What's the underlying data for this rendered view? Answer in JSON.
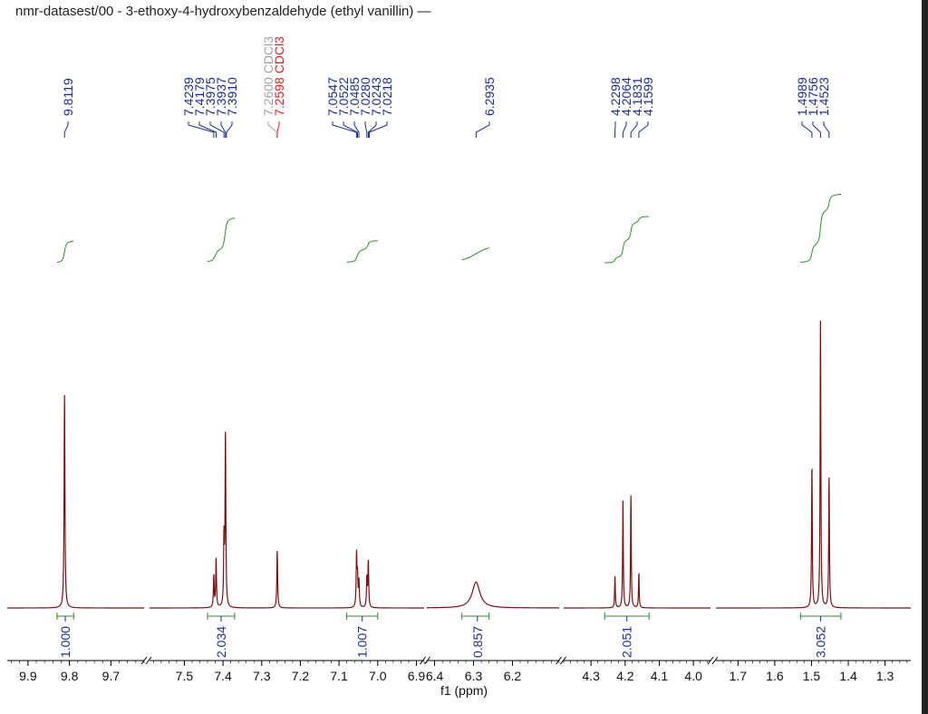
{
  "chart_data": {
    "type": "line",
    "title": "nmr-datasest/00 - 3-ethoxy-4-hydroxybenzaldehyde (ethyl vanillin) —",
    "xlabel": "f1 (ppm)",
    "x_axis_reversed": true,
    "axis_breaks": true,
    "colors": {
      "spectrum": "#7a1010",
      "integral": "#2e8b2e",
      "peak_label": "#1a2d8c",
      "solvent_ref": "#a0a0a0",
      "solvent_active": "#e02020",
      "axis": "#000000"
    },
    "segments": [
      {
        "range": [
          9.95,
          9.62
        ],
        "ticks": [
          "9.9",
          "9.8",
          "9.7"
        ],
        "tick_values": [
          9.9,
          9.8,
          9.7
        ]
      },
      {
        "range": [
          7.59,
          6.88
        ],
        "ticks": [
          "7.5",
          "7.4",
          "7.3",
          "7.2",
          "7.1",
          "7.0",
          "6.9"
        ],
        "tick_values": [
          7.5,
          7.4,
          7.3,
          7.2,
          7.1,
          7.0,
          6.9
        ]
      },
      {
        "range": [
          6.42,
          6.08
        ],
        "ticks": [
          "6.4",
          "6.3",
          "6.2"
        ],
        "tick_values": [
          6.4,
          6.3,
          6.2
        ]
      },
      {
        "range": [
          4.38,
          3.95
        ],
        "ticks": [
          "4.3",
          "4.2",
          "4.1",
          "4.0"
        ],
        "tick_values": [
          4.3,
          4.2,
          4.1,
          4.0
        ]
      },
      {
        "range": [
          1.76,
          1.23
        ],
        "ticks": [
          "1.7",
          "1.6",
          "1.5",
          "1.4",
          "1.3"
        ],
        "tick_values": [
          1.7,
          1.6,
          1.5,
          1.4,
          1.3
        ]
      }
    ],
    "peaks": [
      {
        "shift": 9.8119,
        "height": 0.74,
        "width": 0.0012
      },
      {
        "shift": 7.4239,
        "height": 0.11,
        "width": 0.0012
      },
      {
        "shift": 7.4179,
        "height": 0.17,
        "width": 0.0012
      },
      {
        "shift": 7.3975,
        "height": 0.23,
        "width": 0.0012
      },
      {
        "shift": 7.3937,
        "height": 0.6,
        "width": 0.0012
      },
      {
        "shift": 7.2598,
        "height": 0.2,
        "width": 0.0012
      },
      {
        "shift": 7.0547,
        "height": 0.18,
        "width": 0.0012
      },
      {
        "shift": 7.0522,
        "height": 0.1,
        "width": 0.0012
      },
      {
        "shift": 7.0485,
        "height": 0.09,
        "width": 0.0012
      },
      {
        "shift": 7.028,
        "height": 0.1,
        "width": 0.0012
      },
      {
        "shift": 7.0243,
        "height": 0.16,
        "width": 0.0012
      },
      {
        "shift": 6.2935,
        "height": 0.09,
        "width": 0.012
      },
      {
        "shift": 4.2298,
        "height": 0.11,
        "width": 0.0012
      },
      {
        "shift": 4.2064,
        "height": 0.38,
        "width": 0.0012
      },
      {
        "shift": 4.1831,
        "height": 0.39,
        "width": 0.0012
      },
      {
        "shift": 4.1599,
        "height": 0.12,
        "width": 0.0012
      },
      {
        "shift": 1.4989,
        "height": 0.49,
        "width": 0.0012
      },
      {
        "shift": 1.4756,
        "height": 1.0,
        "width": 0.0012
      },
      {
        "shift": 1.4523,
        "height": 0.45,
        "width": 0.0012
      }
    ],
    "peak_labels": [
      {
        "group": [
          9.8119
        ],
        "labels": [
          "9.8119"
        ],
        "color": "blue"
      },
      {
        "group": [
          7.4239,
          7.4179,
          7.3975,
          7.3937,
          7.391
        ],
        "labels": [
          "7.4239",
          "7.4179",
          "7.3975",
          "7.3937",
          "7.3910"
        ],
        "color": "blue"
      },
      {
        "group": [
          7.26,
          7.2598
        ],
        "labels": [
          "7.2600 CDCl3",
          "7.2598 CDCl3"
        ],
        "colors": [
          "gray",
          "red"
        ]
      },
      {
        "group": [
          7.0547,
          7.0522,
          7.0485,
          7.028,
          7.0243,
          7.0218
        ],
        "labels": [
          "7.0547",
          "7.0522",
          "7.0485",
          "7.0280",
          "7.0243",
          "7.0218"
        ],
        "color": "blue"
      },
      {
        "group": [
          6.2935
        ],
        "labels": [
          "6.2935"
        ],
        "color": "blue"
      },
      {
        "group": [
          4.2298,
          4.2064,
          4.1831,
          4.1599
        ],
        "labels": [
          "4.2298",
          "4.2064",
          "4.1831",
          "4.1599"
        ],
        "color": "blue"
      },
      {
        "group": [
          1.4989,
          1.4756,
          1.4523
        ],
        "labels": [
          "1.4989",
          "1.4756",
          "1.4523"
        ],
        "color": "blue"
      }
    ],
    "integrals": [
      {
        "from": 9.83,
        "to": 9.79,
        "value": "1.000",
        "label_at": 9.81
      },
      {
        "from": 7.44,
        "to": 7.37,
        "value": "2.034",
        "label_at": 7.405
      },
      {
        "from": 7.08,
        "to": 7.0,
        "value": "1.007",
        "label_at": 7.04
      },
      {
        "from": 6.33,
        "to": 6.26,
        "value": "0.857",
        "label_at": 6.29
      },
      {
        "from": 4.26,
        "to": 4.13,
        "value": "2.051",
        "label_at": 4.195
      },
      {
        "from": 1.53,
        "to": 1.42,
        "value": "3.052",
        "label_at": 1.475
      }
    ]
  }
}
